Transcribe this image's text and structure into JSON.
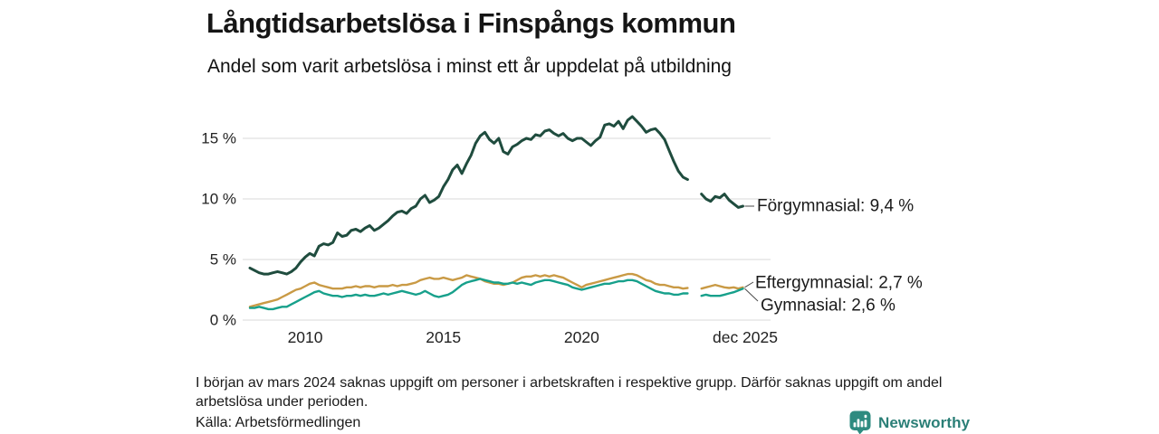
{
  "header": {
    "title": "Långtidsarbetslösa i Finspångs kommun",
    "subtitle": "Andel som varit arbetslösa i minst ett år uppdelat på utbildning"
  },
  "chart_data": {
    "type": "line",
    "unit": "%",
    "x_start_year": 2008,
    "x_months_per_point": 2,
    "xlim": [
      2008,
      2025.917
    ],
    "ylim": [
      0,
      17.5
    ],
    "grid": true,
    "legend_position": "right-end-labels",
    "missing_data_period": "early 2024",
    "y_ticks": [
      {
        "value": 0,
        "label": "0 %"
      },
      {
        "value": 5,
        "label": "5 %"
      },
      {
        "value": 10,
        "label": "10 %"
      },
      {
        "value": 15,
        "label": "15 %"
      }
    ],
    "x_ticks": [
      {
        "year": 2010,
        "label": "2010"
      },
      {
        "year": 2015,
        "label": "2015"
      },
      {
        "year": 2020,
        "label": "2020"
      },
      {
        "year": 2025.917,
        "label": "dec 2025"
      }
    ],
    "series": [
      {
        "name": "Förgymnasial",
        "end_label": "Förgymnasial: 9,4 %",
        "last_value": "9,4 %",
        "color": "#1f4c3e",
        "values": [
          4.3,
          4.1,
          3.9,
          3.8,
          3.8,
          3.9,
          4.0,
          3.9,
          3.8,
          4.0,
          4.3,
          4.8,
          5.2,
          5.5,
          5.3,
          6.1,
          6.3,
          6.2,
          6.4,
          7.2,
          6.9,
          7.0,
          7.4,
          7.5,
          7.3,
          7.6,
          7.8,
          7.4,
          7.6,
          7.9,
          8.2,
          8.6,
          8.9,
          9.0,
          8.8,
          9.2,
          9.4,
          10.0,
          10.3,
          9.7,
          9.9,
          10.2,
          11.0,
          11.6,
          12.4,
          12.8,
          12.1,
          12.9,
          13.6,
          14.6,
          15.2,
          15.5,
          14.9,
          14.6,
          15.0,
          13.9,
          13.7,
          14.3,
          14.5,
          14.8,
          15.0,
          14.9,
          15.3,
          15.2,
          15.6,
          15.7,
          15.4,
          15.2,
          15.4,
          15.0,
          14.8,
          15.0,
          15.0,
          14.7,
          14.4,
          14.8,
          15.1,
          16.1,
          16.2,
          16.0,
          16.4,
          15.8,
          16.5,
          16.8,
          16.4,
          16.0,
          15.5,
          15.7,
          15.8,
          15.4,
          14.9,
          14.0,
          13.1,
          12.3,
          11.8,
          11.6,
          null,
          null,
          10.4,
          10.0,
          9.8,
          10.2,
          10.1,
          10.4,
          9.9,
          9.6,
          9.3,
          9.4
        ]
      },
      {
        "name": "Eftergymnasial",
        "end_label": "Eftergymnasial: 2,7 %",
        "last_value": "2,7 %",
        "color": "#c99a45",
        "values": [
          1.1,
          1.2,
          1.3,
          1.4,
          1.5,
          1.6,
          1.7,
          1.9,
          2.1,
          2.3,
          2.5,
          2.6,
          2.8,
          3.0,
          3.1,
          2.9,
          2.8,
          2.7,
          2.6,
          2.6,
          2.6,
          2.7,
          2.7,
          2.8,
          2.7,
          2.8,
          2.8,
          2.7,
          2.8,
          2.8,
          2.8,
          2.9,
          2.8,
          2.9,
          2.9,
          3.0,
          3.1,
          3.3,
          3.4,
          3.5,
          3.4,
          3.4,
          3.5,
          3.4,
          3.3,
          3.4,
          3.5,
          3.7,
          3.6,
          3.5,
          3.4,
          3.2,
          3.1,
          3.0,
          3.0,
          2.9,
          3.0,
          3.1,
          3.3,
          3.5,
          3.6,
          3.6,
          3.7,
          3.6,
          3.7,
          3.6,
          3.7,
          3.6,
          3.5,
          3.3,
          3.1,
          2.9,
          2.7,
          2.9,
          3.0,
          3.1,
          3.2,
          3.3,
          3.4,
          3.5,
          3.6,
          3.7,
          3.8,
          3.8,
          3.7,
          3.5,
          3.3,
          3.2,
          3.0,
          2.9,
          2.9,
          2.8,
          2.7,
          2.7,
          2.6,
          2.65,
          null,
          null,
          2.6,
          2.7,
          2.8,
          2.9,
          2.8,
          2.7,
          2.65,
          2.7,
          2.6,
          2.7
        ]
      },
      {
        "name": "Gymnasial",
        "end_label": "Gymnasial: 2,6 %",
        "last_value": "2,6 %",
        "color": "#17a08b",
        "values": [
          1.0,
          1.0,
          1.1,
          1.0,
          0.9,
          0.9,
          1.0,
          1.1,
          1.1,
          1.3,
          1.5,
          1.7,
          1.9,
          2.1,
          2.3,
          2.4,
          2.2,
          2.1,
          2.0,
          2.0,
          1.9,
          2.0,
          2.0,
          2.1,
          2.0,
          2.1,
          2.0,
          2.0,
          2.1,
          2.2,
          2.1,
          2.2,
          2.3,
          2.4,
          2.3,
          2.2,
          2.1,
          2.2,
          2.4,
          2.2,
          2.0,
          1.9,
          2.0,
          2.1,
          2.3,
          2.6,
          2.9,
          3.1,
          3.2,
          3.3,
          3.4,
          3.3,
          3.2,
          3.1,
          3.1,
          3.0,
          3.0,
          3.1,
          3.0,
          3.1,
          3.0,
          2.9,
          3.1,
          3.2,
          3.3,
          3.3,
          3.2,
          3.1,
          3.0,
          2.9,
          2.7,
          2.6,
          2.5,
          2.6,
          2.7,
          2.8,
          2.9,
          3.0,
          3.0,
          3.1,
          3.2,
          3.2,
          3.3,
          3.3,
          3.2,
          3.0,
          2.8,
          2.6,
          2.4,
          2.3,
          2.2,
          2.2,
          2.1,
          2.1,
          2.2,
          2.2,
          null,
          null,
          2.0,
          2.1,
          2.0,
          2.0,
          2.0,
          2.1,
          2.2,
          2.3,
          2.45,
          2.6
        ]
      }
    ]
  },
  "footer": {
    "note": "I början av mars 2024 saknas uppgift om personer i arbetskraften i respektive grupp. Därför saknas uppgift om andel arbetslösa under perioden.",
    "source": "Källa: Arbetsförmedlingen",
    "brand": "Newsworthy"
  },
  "colors": {
    "grid": "#e1e1e1",
    "connector": "#4a4a4a",
    "brand_teal": "#2e8b80",
    "text": "#1a1a1a"
  }
}
